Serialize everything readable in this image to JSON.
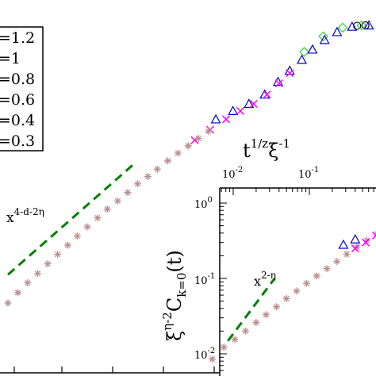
{
  "chart_data": [
    {
      "type": "scatter",
      "role": "main",
      "xscale": "log",
      "yscale": "log",
      "legend": {
        "placement": "top-left",
        "entries": [
          "=1.2",
          "=1",
          "=0.8",
          "=0.6",
          "=0.4",
          "=0.3"
        ]
      },
      "series": [
        {
          "marker": "circle",
          "color": "#000000",
          "points": [
            [
              70,
              0.99
            ],
            [
              90,
              1.0
            ]
          ]
        },
        {
          "marker": "diamond",
          "color": "#33cc33",
          "points": [
            [
              14,
              0.55
            ],
            [
              25,
              0.78
            ],
            [
              45,
              0.95
            ],
            [
              80,
              1.0
            ]
          ]
        },
        {
          "marker": "triangle",
          "color": "#0000cc",
          "points": [
            [
              0.95,
              0.12
            ],
            [
              1.6,
              0.145
            ],
            [
              2.6,
              0.17
            ],
            [
              4.2,
              0.21
            ],
            [
              6.3,
              0.28
            ],
            [
              9,
              0.36
            ],
            [
              13,
              0.46
            ],
            [
              18,
              0.58
            ],
            [
              26,
              0.72
            ],
            [
              38,
              0.86
            ],
            [
              60,
              0.97
            ],
            [
              100,
              1.0
            ]
          ]
        },
        {
          "marker": "x",
          "color": "#ff00ff",
          "points": [
            [
              0.5,
              0.075
            ],
            [
              0.8,
              0.095
            ],
            [
              1.3,
              0.12
            ],
            [
              2,
              0.145
            ],
            [
              3,
              0.17
            ],
            [
              4.5,
              0.21
            ],
            [
              6.5,
              0.27
            ],
            [
              9,
              0.34
            ]
          ]
        },
        {
          "marker": "asterisk",
          "color": "#bc8f8f",
          "points": [
            [
              0.0017,
              0.0019
            ],
            [
              0.0023,
              0.0024
            ],
            [
              0.0031,
              0.003
            ],
            [
              0.0042,
              0.0037
            ],
            [
              0.0057,
              0.0046
            ],
            [
              0.0077,
              0.0057
            ],
            [
              0.0105,
              0.007
            ],
            [
              0.014,
              0.0086
            ],
            [
              0.019,
              0.0106
            ],
            [
              0.026,
              0.013
            ],
            [
              0.035,
              0.0158
            ],
            [
              0.048,
              0.019
            ],
            [
              0.065,
              0.023
            ],
            [
              0.088,
              0.028
            ],
            [
              0.12,
              0.033
            ],
            [
              0.16,
              0.039
            ],
            [
              0.22,
              0.047
            ],
            [
              0.3,
              0.056
            ],
            [
              0.41,
              0.066
            ],
            [
              0.56,
              0.078
            ],
            [
              0.76,
              0.092
            ]
          ]
        }
      ],
      "guide_line": {
        "label_base": "x",
        "label_exponent": "4-d-2η",
        "color": "#008000",
        "style": "dashed",
        "points": [
          [
            0.0017,
            0.0036
          ],
          [
            0.075,
            0.0425
          ]
        ]
      }
    },
    {
      "type": "scatter",
      "role": "inset",
      "xscale": "log",
      "yscale": "log",
      "xlabel": {
        "base": "t",
        "sup1": "1/z",
        "mid": "ξ",
        "sup2": "-1"
      },
      "ylabel": {
        "pre": "ξ",
        "sup": "η-2",
        "mid": "C",
        "sub": "k=0",
        "post": "(t)"
      },
      "x_tick_labels": [
        {
          "value": 0.01,
          "base": "10",
          "exp": "-2"
        },
        {
          "value": 0.1,
          "base": "10",
          "exp": "-1"
        }
      ],
      "y_tick_labels": [
        {
          "value": 1,
          "base": "10",
          "exp": "0"
        },
        {
          "value": 0.1,
          "base": "10",
          "exp": "-1"
        },
        {
          "value": 0.01,
          "base": "10",
          "exp": "-2"
        }
      ],
      "series": [
        {
          "marker": "asterisk",
          "color": "#bc8f8f",
          "points": [
            [
              0.0053,
              0.0085
            ],
            [
              0.0075,
              0.0122
            ],
            [
              0.0105,
              0.0155
            ],
            [
              0.0145,
              0.02
            ],
            [
              0.02,
              0.026
            ],
            [
              0.027,
              0.033
            ],
            [
              0.037,
              0.042
            ],
            [
              0.05,
              0.054
            ],
            [
              0.068,
              0.068
            ],
            [
              0.092,
              0.086
            ],
            [
              0.125,
              0.108
            ],
            [
              0.17,
              0.135
            ],
            [
              0.23,
              0.168
            ],
            [
              0.31,
              0.21
            ],
            [
              0.42,
              0.26
            ],
            [
              0.57,
              0.32
            ],
            [
              0.77,
              0.39
            ],
            [
              1.05,
              0.48
            ],
            [
              1.4,
              0.58
            ]
          ]
        },
        {
          "marker": "x",
          "color": "#ff00ff",
          "points": [
            [
              0.4,
              0.25
            ],
            [
              0.55,
              0.3
            ],
            [
              0.75,
              0.37
            ],
            [
              1.0,
              0.45
            ],
            [
              1.3,
              0.52
            ],
            [
              1.8,
              0.62
            ],
            [
              2.5,
              0.74
            ]
          ]
        },
        {
          "marker": "triangle",
          "color": "#0000cc",
          "points": [
            [
              0.28,
              0.28
            ],
            [
              0.4,
              0.33
            ]
          ]
        }
      ],
      "guide_line": {
        "label_base": "x",
        "label_exponent": "2-η",
        "color": "#008000",
        "style": "dashed",
        "points": [
          [
            0.0085,
            0.0148
          ],
          [
            0.035,
            0.1
          ]
        ]
      }
    }
  ]
}
